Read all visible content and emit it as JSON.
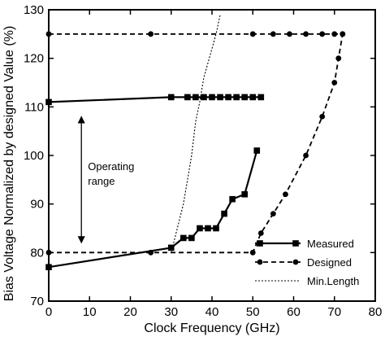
{
  "chart_data": {
    "type": "line",
    "xlabel": "Clock Frequency (GHz)",
    "ylabel": "Bias Voltage Normalized by designed Value (%)",
    "xlim": [
      0,
      80
    ],
    "ylim": [
      70,
      130
    ],
    "xticks": [
      0,
      10,
      20,
      30,
      40,
      50,
      60,
      70,
      80
    ],
    "yticks": [
      70,
      80,
      90,
      100,
      110,
      120,
      130
    ],
    "grid": false,
    "legend_position": "bottom-right",
    "series": [
      {
        "name": "Measured",
        "style": "solid",
        "marker": "square",
        "segments": [
          [
            [
              0,
              111
            ],
            [
              30,
              112
            ],
            [
              34,
              112
            ],
            [
              36,
              112
            ],
            [
              38,
              112
            ],
            [
              40,
              112
            ],
            [
              42,
              112
            ],
            [
              44,
              112
            ],
            [
              46,
              112
            ],
            [
              48,
              112
            ],
            [
              50,
              112
            ],
            [
              52,
              112
            ]
          ],
          [
            [
              0,
              77
            ],
            [
              30,
              81
            ],
            [
              33,
              83
            ],
            [
              35,
              83
            ],
            [
              37,
              85
            ],
            [
              39,
              85
            ],
            [
              41,
              85
            ],
            [
              43,
              88
            ],
            [
              45,
              91
            ],
            [
              48,
              92
            ],
            [
              51,
              101
            ]
          ]
        ]
      },
      {
        "name": "Designed",
        "style": "dashed",
        "marker": "circle",
        "segments": [
          [
            [
              0,
              125
            ],
            [
              25,
              125
            ],
            [
              50,
              125
            ],
            [
              55,
              125
            ],
            [
              59,
              125
            ],
            [
              63,
              125
            ],
            [
              67,
              125
            ],
            [
              70,
              125
            ],
            [
              72,
              125
            ]
          ],
          [
            [
              0,
              80
            ],
            [
              25,
              80
            ],
            [
              50,
              80
            ],
            [
              52,
              84
            ],
            [
              55,
              88
            ],
            [
              58,
              92
            ],
            [
              63,
              100
            ],
            [
              67,
              108
            ],
            [
              70,
              115
            ],
            [
              71,
              120
            ],
            [
              72,
              125
            ]
          ]
        ]
      },
      {
        "name": "Min.Length",
        "style": "dotted",
        "marker": "none",
        "segments": [
          [
            [
              30,
              80
            ],
            [
              33,
              90
            ],
            [
              35,
              100
            ],
            [
              36,
              107
            ],
            [
              37,
              111
            ],
            [
              38,
              116
            ],
            [
              40,
              122
            ],
            [
              41,
              125
            ],
            [
              42,
              129
            ]
          ]
        ]
      }
    ],
    "annotations": [
      {
        "text_lines": [
          "Operating",
          "range"
        ],
        "arrow": "double",
        "x": 8,
        "y_from": 82,
        "y_to": 108
      }
    ]
  }
}
